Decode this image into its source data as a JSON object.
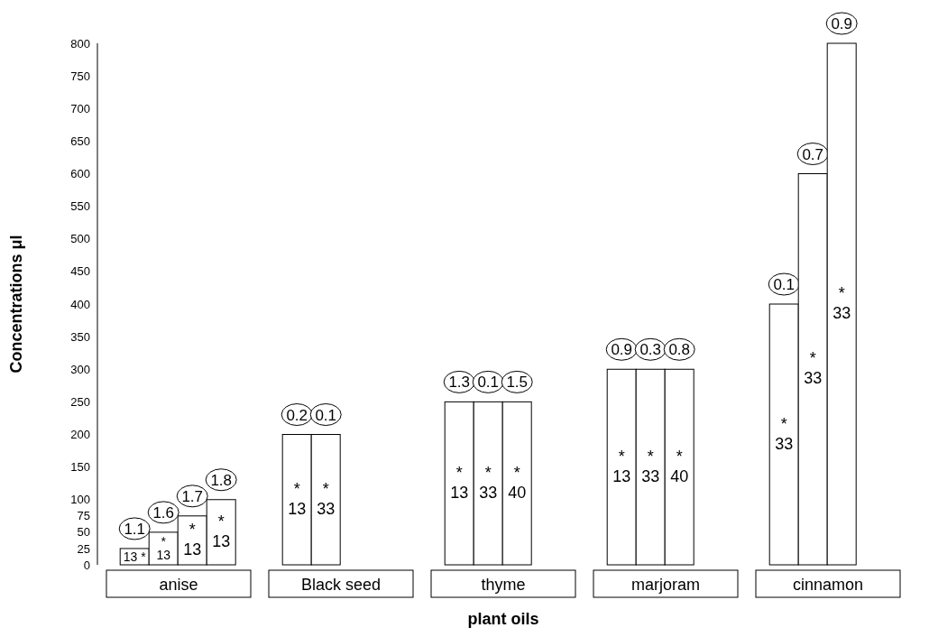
{
  "chart_data": {
    "type": "bar",
    "xlabel": "plant oils",
    "ylabel": "Concentrations μl",
    "categories": [
      "anise",
      "Black seed",
      "thyme",
      "marjoram",
      "cinnamon"
    ],
    "series": [
      {
        "color": "#ffffff",
        "values": [
          25,
          200,
          250,
          300,
          400
        ]
      },
      {
        "color": "#ffffff",
        "values": [
          50,
          200,
          250,
          300,
          600
        ]
      },
      {
        "color": "#ffffff",
        "values": [
          75,
          null,
          250,
          300,
          800
        ]
      },
      {
        "color": "#ffffff",
        "values": [
          100,
          null,
          null,
          null,
          null
        ]
      }
    ],
    "ylim": [
      0,
      800
    ],
    "yticks": [
      0,
      25,
      50,
      75,
      100,
      150,
      200,
      250,
      300,
      350,
      400,
      450,
      500,
      550,
      600,
      650,
      700,
      750,
      800
    ],
    "grid": false,
    "legend": false,
    "annotations": [
      "1.1",
      "13 *",
      "1.6",
      "*\n13",
      "1.7",
      "*\n13",
      "1.8",
      "*\n13",
      "0.2",
      "*\n13",
      "0.1",
      "*\n33",
      "1.3",
      "*\n13",
      "0.1",
      "*\n33",
      "1.5",
      "*\n40",
      "0.9",
      "*\n13",
      "0.3",
      "*\n33",
      "0.8",
      "*\n40",
      "0.1",
      "*\n33",
      "0.7",
      "*\n33",
      "0.9",
      "*\n33"
    ]
  }
}
